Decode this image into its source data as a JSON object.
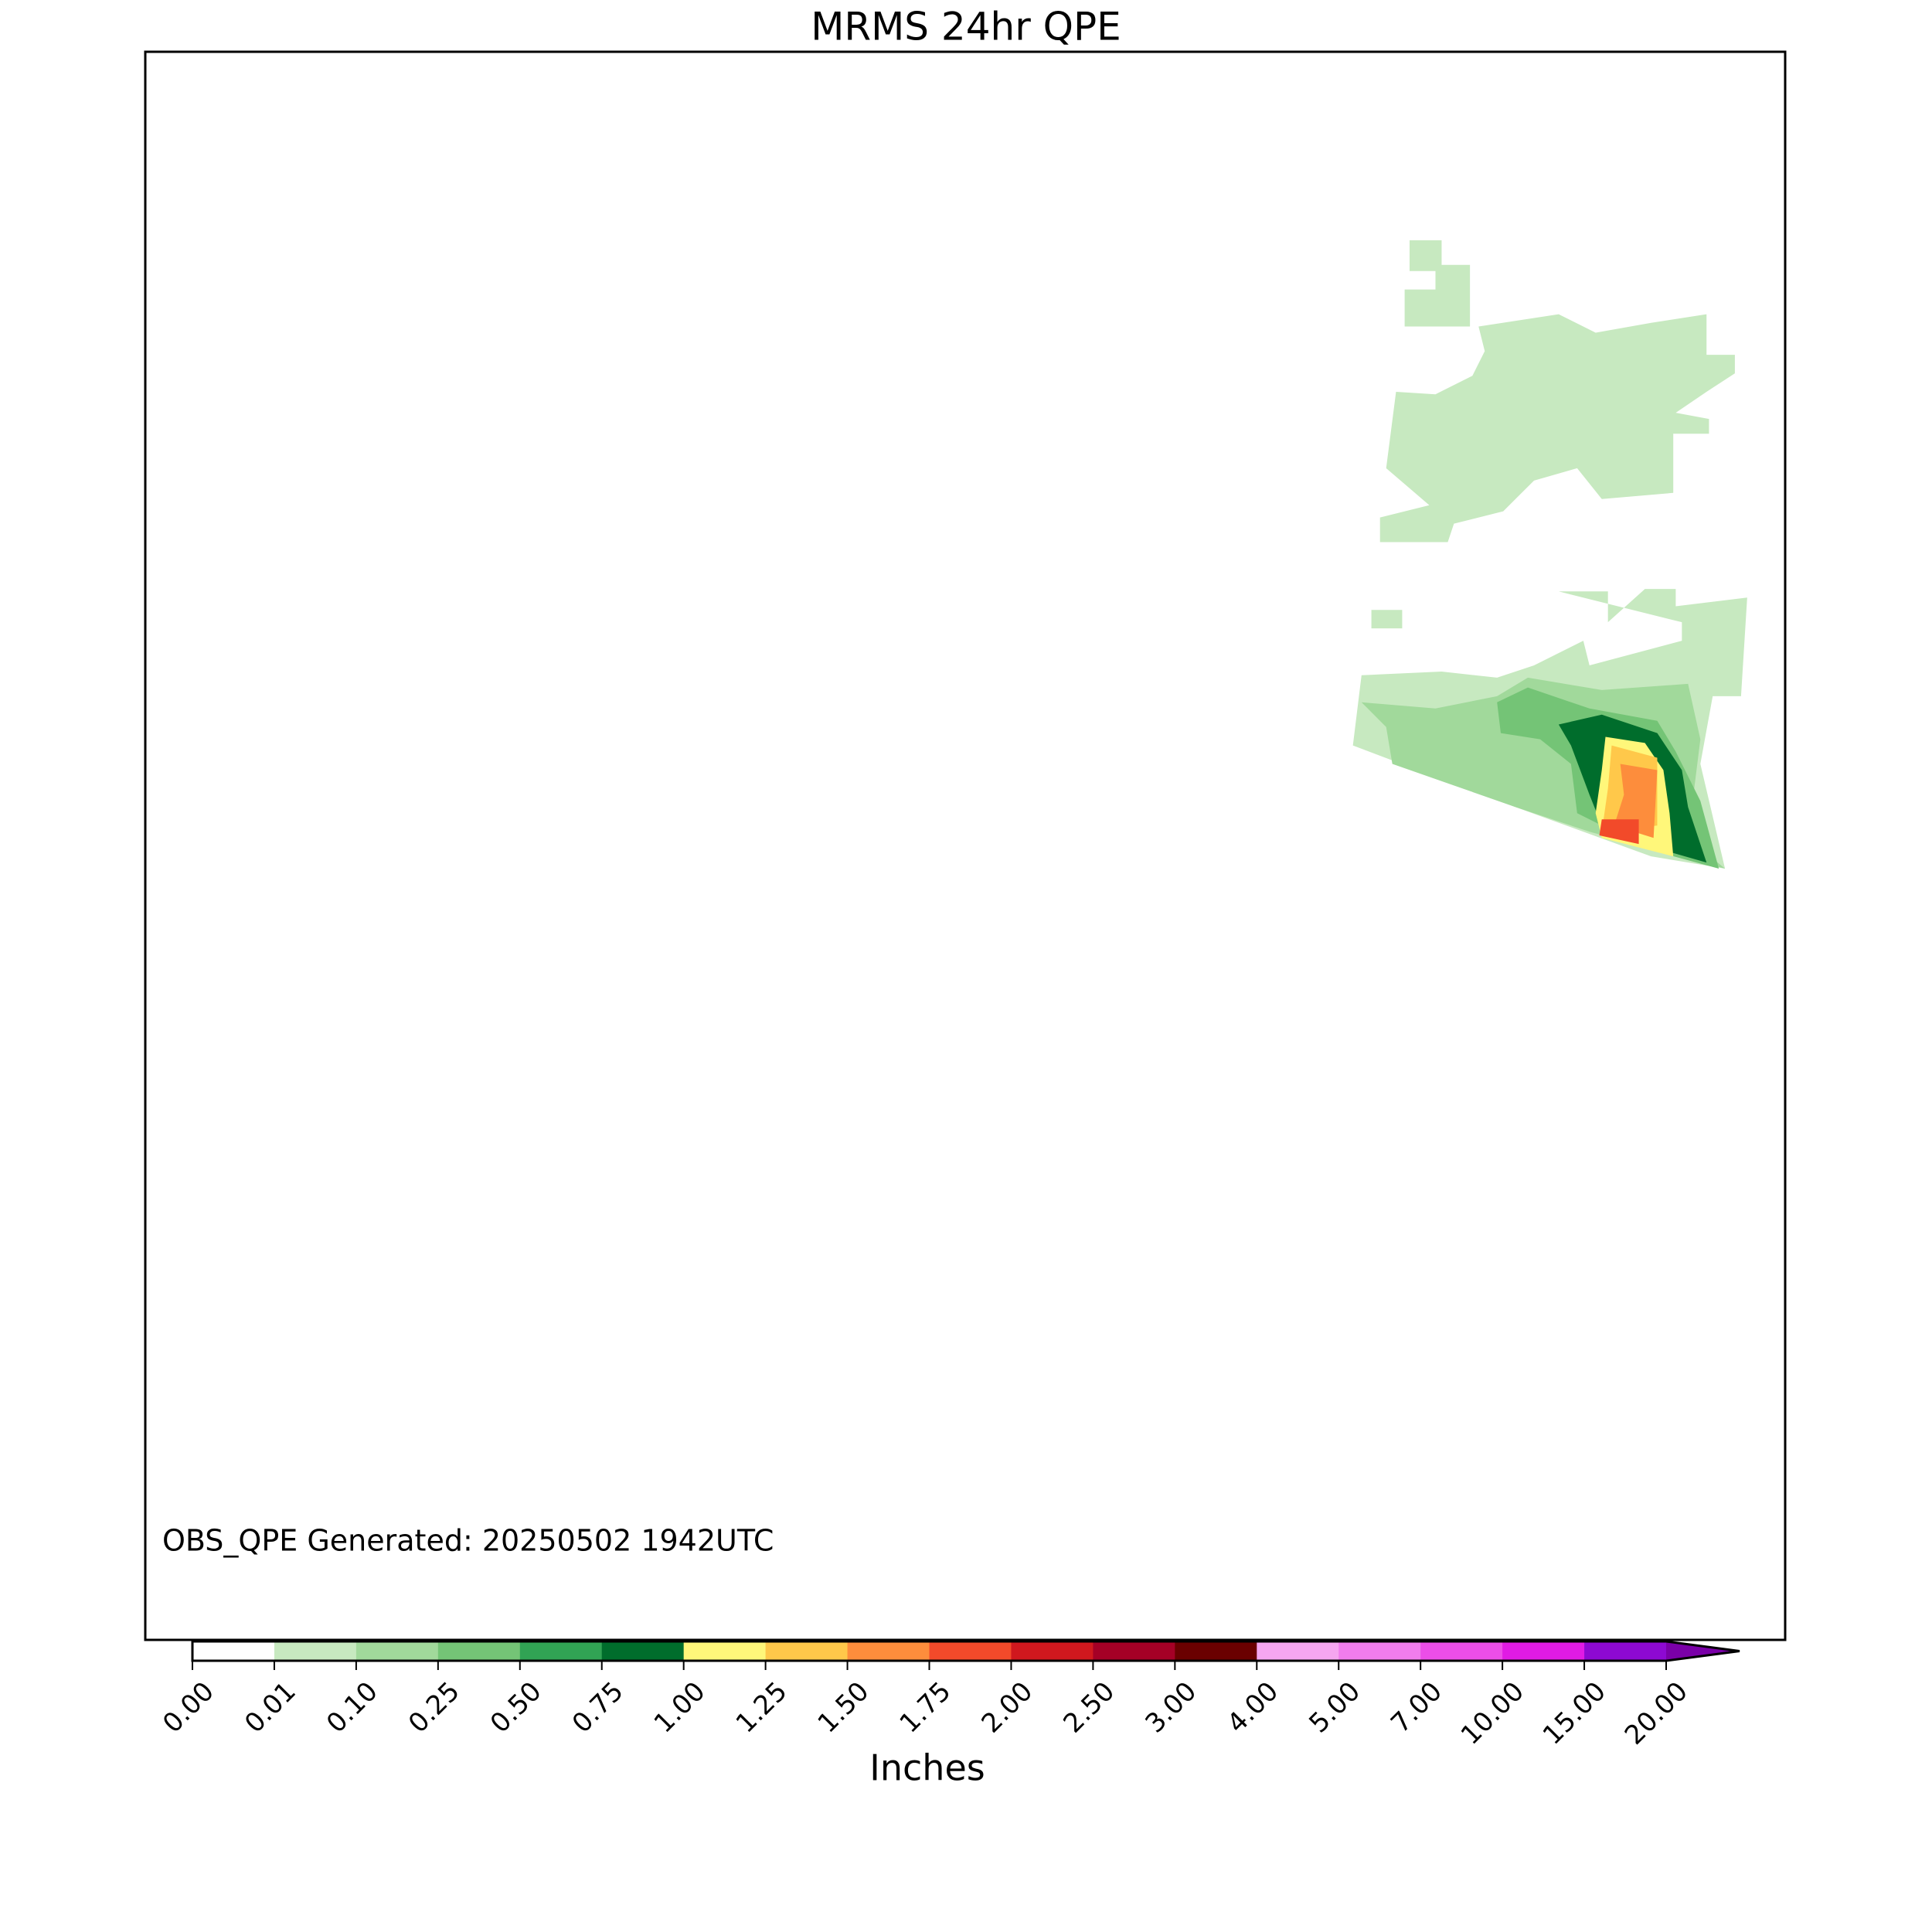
{
  "chart_data": {
    "type": "map",
    "title": "MRMS 24hr QPE",
    "annotation": "OBS_QPE Generated: 20250502 1942UTC",
    "colorbar": {
      "label": "Inches",
      "ticks": [
        {
          "value": 0,
          "label": "0.00"
        },
        {
          "value": 0.01,
          "label": "0.01"
        },
        {
          "value": 0.1,
          "label": "0.10"
        },
        {
          "value": 0.25,
          "label": "0.25"
        },
        {
          "value": 0.5,
          "label": "0.50"
        },
        {
          "value": 0.75,
          "label": "0.75"
        },
        {
          "value": 1,
          "label": "1.00"
        },
        {
          "value": 1.25,
          "label": "1.25"
        },
        {
          "value": 1.5,
          "label": "1.50"
        },
        {
          "value": 1.75,
          "label": "1.75"
        },
        {
          "value": 2,
          "label": "2.00"
        },
        {
          "value": 2.5,
          "label": "2.50"
        },
        {
          "value": 3,
          "label": "3.00"
        },
        {
          "value": 4,
          "label": "4.00"
        },
        {
          "value": 5,
          "label": "5.00"
        },
        {
          "value": 7,
          "label": "7.00"
        },
        {
          "value": 10,
          "label": "10.00"
        },
        {
          "value": 15,
          "label": "15.00"
        },
        {
          "value": 20,
          "label": "20.00"
        }
      ],
      "colors": [
        "#ffffff",
        "#c7e9c0",
        "#a1d99b",
        "#74c476",
        "#31a354",
        "#006d2c",
        "#fff77a",
        "#ffc84a",
        "#fd8d3c",
        "#f24a2a",
        "#d0181e",
        "#a50026",
        "#6a0000",
        "#f5a6f0",
        "#f07ded",
        "#ec4ee8",
        "#e01be4",
        "#8d09d2"
      ],
      "extend_color": "#7a00a8"
    }
  }
}
